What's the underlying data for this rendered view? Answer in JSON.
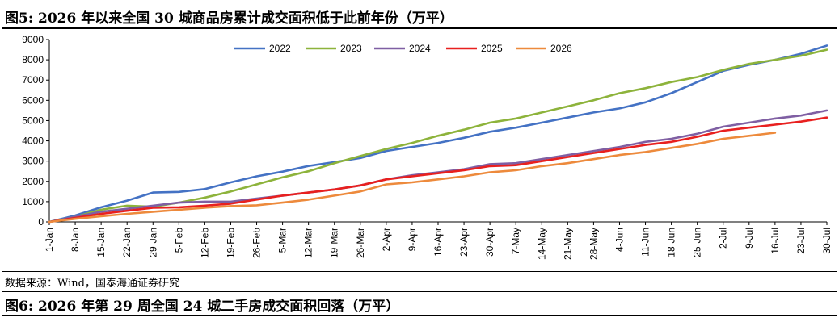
{
  "figure5": {
    "title": "图5:  2026 年以来全国 30 城商品房累计成交面积低于此前年份（万平）",
    "source": "数据来源：Wind，国泰海通证券研究"
  },
  "figure6": {
    "title": "图6:  2026 年第 29 周全国 24 城二手房成交面积回落（万平）"
  },
  "chart_data": {
    "type": "line",
    "title": "",
    "xlabel": "",
    "ylabel": "",
    "ylim": [
      0,
      9000
    ],
    "yticks": [
      0,
      1000,
      2000,
      3000,
      4000,
      5000,
      6000,
      7000,
      8000,
      9000
    ],
    "xlim": [
      1,
      211
    ],
    "x_tick_days": [
      1,
      8,
      15,
      22,
      29,
      36,
      43,
      50,
      57,
      64,
      71,
      78,
      85,
      92,
      99,
      106,
      113,
      120,
      127,
      134,
      141,
      148,
      155,
      162,
      169,
      176,
      183,
      190,
      197,
      204,
      211
    ],
    "x_tick_labels": [
      "1-Jan",
      "8-Jan",
      "15-Jan",
      "22-Jan",
      "29-Jan",
      "5-Feb",
      "12-Feb",
      "19-Feb",
      "26-Feb",
      "5-Mar",
      "12-Mar",
      "19-Mar",
      "26-Mar",
      "2-Apr",
      "9-Apr",
      "16-Apr",
      "23-Apr",
      "30-Apr",
      "7-May",
      "14-May",
      "21-May",
      "28-May",
      "4-Jun",
      "11-Jun",
      "18-Jun",
      "25-Jun",
      "2-Jul",
      "9-Jul",
      "16-Jul",
      "23-Jul",
      "30-Jul"
    ],
    "legend_position": "top",
    "grid": false,
    "series": [
      {
        "name": "2022",
        "color": "#4472C4",
        "x": [
          1,
          8,
          15,
          22,
          29,
          36,
          43,
          50,
          57,
          64,
          71,
          78,
          85,
          92,
          99,
          106,
          113,
          120,
          127,
          134,
          141,
          148,
          155,
          162,
          169,
          176,
          183,
          190,
          197,
          204,
          211
        ],
        "y": [
          0,
          320,
          720,
          1050,
          1450,
          1480,
          1620,
          1950,
          2250,
          2480,
          2760,
          2950,
          3150,
          3500,
          3700,
          3900,
          4150,
          4450,
          4650,
          4900,
          5150,
          5400,
          5600,
          5900,
          6350,
          6900,
          7450,
          7750,
          8000,
          8300,
          8700
        ]
      },
      {
        "name": "2023",
        "color": "#8DB33B",
        "x": [
          1,
          8,
          15,
          22,
          29,
          36,
          43,
          50,
          57,
          64,
          71,
          78,
          85,
          92,
          99,
          106,
          113,
          120,
          127,
          134,
          141,
          148,
          155,
          162,
          169,
          176,
          183,
          190,
          197,
          204,
          211
        ],
        "y": [
          0,
          250,
          600,
          800,
          750,
          950,
          1200,
          1500,
          1850,
          2200,
          2500,
          2900,
          3250,
          3600,
          3900,
          4250,
          4550,
          4900,
          5100,
          5400,
          5700,
          6000,
          6350,
          6600,
          6900,
          7150,
          7500,
          7800,
          8000,
          8200,
          8500
        ]
      },
      {
        "name": "2024",
        "color": "#7F5FA3",
        "x": [
          1,
          8,
          15,
          22,
          29,
          36,
          43,
          50,
          57,
          64,
          71,
          78,
          85,
          92,
          99,
          106,
          113,
          120,
          127,
          134,
          141,
          148,
          155,
          162,
          169,
          176,
          183,
          190,
          197,
          204,
          211
        ],
        "y": [
          0,
          250,
          500,
          650,
          800,
          950,
          1000,
          1000,
          1150,
          1300,
          1450,
          1600,
          1800,
          2100,
          2300,
          2450,
          2600,
          2850,
          2900,
          3100,
          3300,
          3500,
          3700,
          3950,
          4100,
          4350,
          4700,
          4900,
          5100,
          5250,
          5500
        ]
      },
      {
        "name": "2025",
        "color": "#E8201F",
        "x": [
          1,
          8,
          15,
          22,
          29,
          36,
          43,
          50,
          57,
          64,
          71,
          78,
          85,
          92,
          99,
          106,
          113,
          120,
          127,
          134,
          141,
          148,
          155,
          162,
          169,
          176,
          183,
          190,
          197,
          204,
          211
        ],
        "y": [
          0,
          200,
          400,
          550,
          700,
          720,
          800,
          900,
          1100,
          1300,
          1450,
          1600,
          1800,
          2100,
          2250,
          2400,
          2550,
          2750,
          2800,
          3000,
          3200,
          3400,
          3600,
          3800,
          3950,
          4200,
          4500,
          4650,
          4800,
          4950,
          5150
        ]
      },
      {
        "name": "2026",
        "color": "#ED8A3C",
        "x": [
          1,
          8,
          15,
          22,
          29,
          36,
          43,
          50,
          57,
          64,
          71,
          78,
          85,
          92,
          99,
          106,
          113,
          120,
          127,
          134,
          141,
          148,
          155,
          162,
          169,
          176,
          183,
          190,
          197
        ],
        "y": [
          0,
          150,
          280,
          400,
          500,
          600,
          700,
          780,
          820,
          950,
          1100,
          1300,
          1500,
          1850,
          1950,
          2100,
          2250,
          2450,
          2550,
          2750,
          2900,
          3100,
          3300,
          3450,
          3650,
          3850,
          4100,
          4250,
          4400
        ]
      }
    ]
  }
}
